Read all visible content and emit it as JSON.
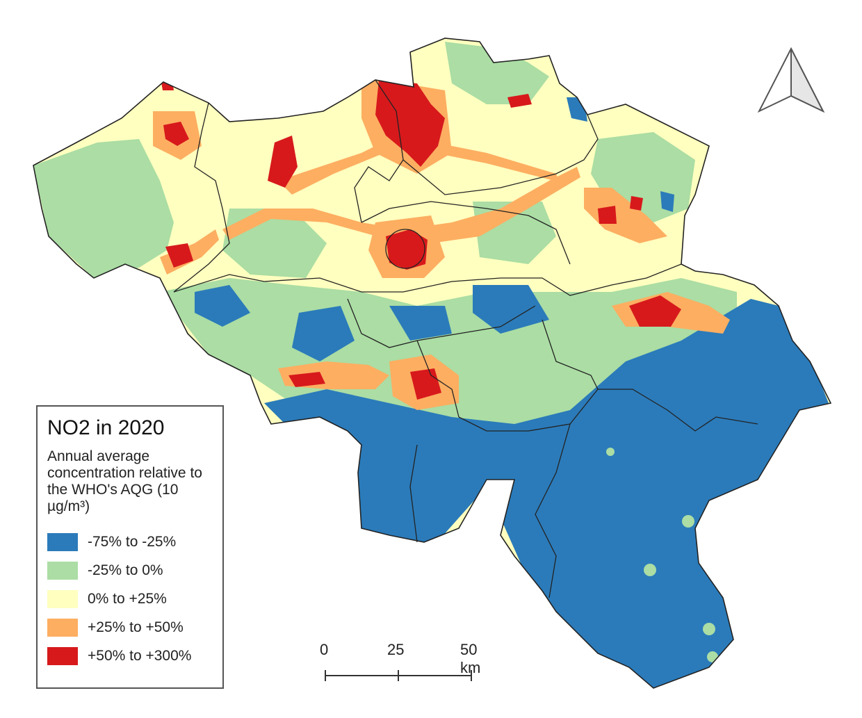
{
  "legend": {
    "title": "NO2 in 2020",
    "subtitle": "Annual average concentration relative to the WHO's AQG (10 µg/m³)",
    "items": [
      {
        "label": "-75% to -25%",
        "color": "#2b7bba"
      },
      {
        "label": "-25% to 0%",
        "color": "#abdda4"
      },
      {
        "label": "0% to +25%",
        "color": "#ffffbf"
      },
      {
        "label": "+25% to +50%",
        "color": "#fdae61"
      },
      {
        "label": "+50% to +300%",
        "color": "#d7191c"
      }
    ]
  },
  "scale_bar": {
    "labels": [
      "0",
      "25",
      "50 km"
    ]
  },
  "north_arrow_icon": "north-arrow-icon"
}
